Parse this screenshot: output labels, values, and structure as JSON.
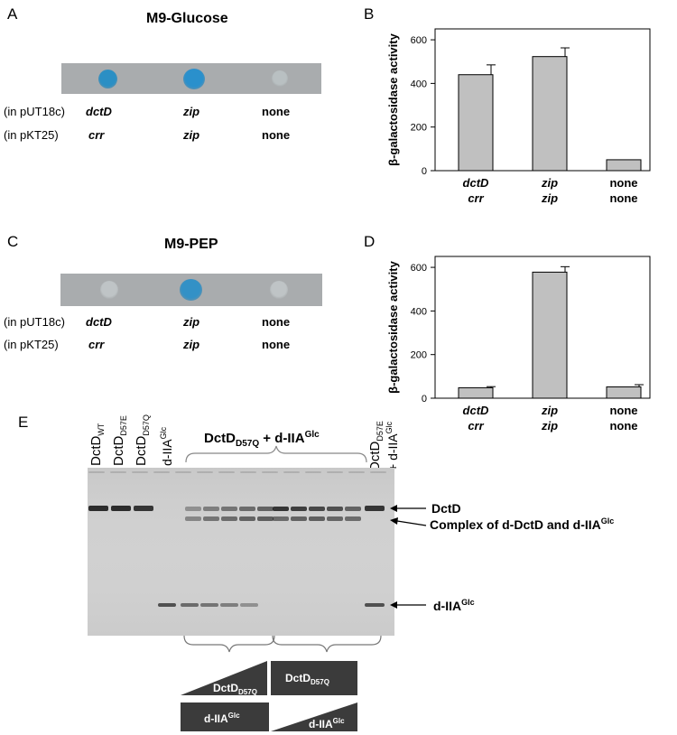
{
  "panelA": {
    "letter": "A",
    "title": "M9-Glucose",
    "row1_label": "(in pUT18c)",
    "row2_label": "(in pKT25)",
    "row1": [
      "dctD",
      "zip",
      "none"
    ],
    "row2": [
      "crr",
      "zip",
      "none"
    ],
    "spot_colors": [
      "#2b8fc4",
      "#2a90cc",
      "#b9c0c2"
    ]
  },
  "panelC": {
    "letter": "C",
    "title": "M9-PEP",
    "row1_label": "(in pUT18c)",
    "row2_label": "(in pKT25)",
    "row1": [
      "dctD",
      "zip",
      "none"
    ],
    "row2": [
      "crr",
      "zip",
      "none"
    ],
    "spot_colors": [
      "#bfc4c6",
      "#3391c6",
      "#bfc4c6"
    ]
  },
  "panelB": {
    "letter": "B"
  },
  "panelD": {
    "letter": "D"
  },
  "chart_data": [
    {
      "type": "bar",
      "ylabel": "β-galactosidase activity",
      "categories": [
        [
          "dctD",
          "crr"
        ],
        [
          "zip",
          "zip"
        ],
        [
          "none",
          "none"
        ]
      ],
      "values": [
        440,
        523,
        50
      ],
      "errors": [
        45,
        40,
        0
      ],
      "ylim": [
        0,
        650
      ],
      "yticks": [
        0,
        200,
        400,
        600
      ],
      "bar_color": "#c0c0c0"
    },
    {
      "type": "bar",
      "ylabel": "β-galactosidase activity",
      "categories": [
        [
          "dctD",
          "crr"
        ],
        [
          "zip",
          "zip"
        ],
        [
          "none",
          "none"
        ]
      ],
      "values": [
        48,
        578,
        52
      ],
      "errors": [
        5,
        25,
        10
      ],
      "ylim": [
        0,
        650
      ],
      "yticks": [
        0,
        200,
        400,
        600
      ],
      "bar_color": "#c0c0c0"
    }
  ],
  "panelE": {
    "letter": "E",
    "lanes": [
      "DctD",
      "DctD",
      "DctD",
      "d-IIA"
    ],
    "lane_subs": [
      "WT",
      "D57E",
      "D57Q",
      "Glc"
    ],
    "header_main": "DctD",
    "header_sub": "D57Q",
    "header_plus": " + d-IIA",
    "header_sup": "Glc",
    "last_lane_main": "DctD",
    "last_lane_sub": "D57E",
    "last_lane_plus": "+ d-IIA",
    "last_lane_sup": "Glc",
    "arrow_dctd": "DctD",
    "arrow_complex": "Complex of d-DctD  and d-IIA",
    "arrow_complex_sup": "Glc",
    "arrow_iia": "d-IIA",
    "arrow_iia_sup": "Glc",
    "box_left_top_main": "DctD",
    "box_left_top_sub": "D57Q",
    "box_left_bottom_main": "d-IIA",
    "box_left_bottom_sup": "Glc",
    "box_right_top_main": "DctD",
    "box_right_top_sub": "D57Q",
    "box_right_bottom_main": "d-IIA",
    "box_right_bottom_sup": "Glc"
  }
}
